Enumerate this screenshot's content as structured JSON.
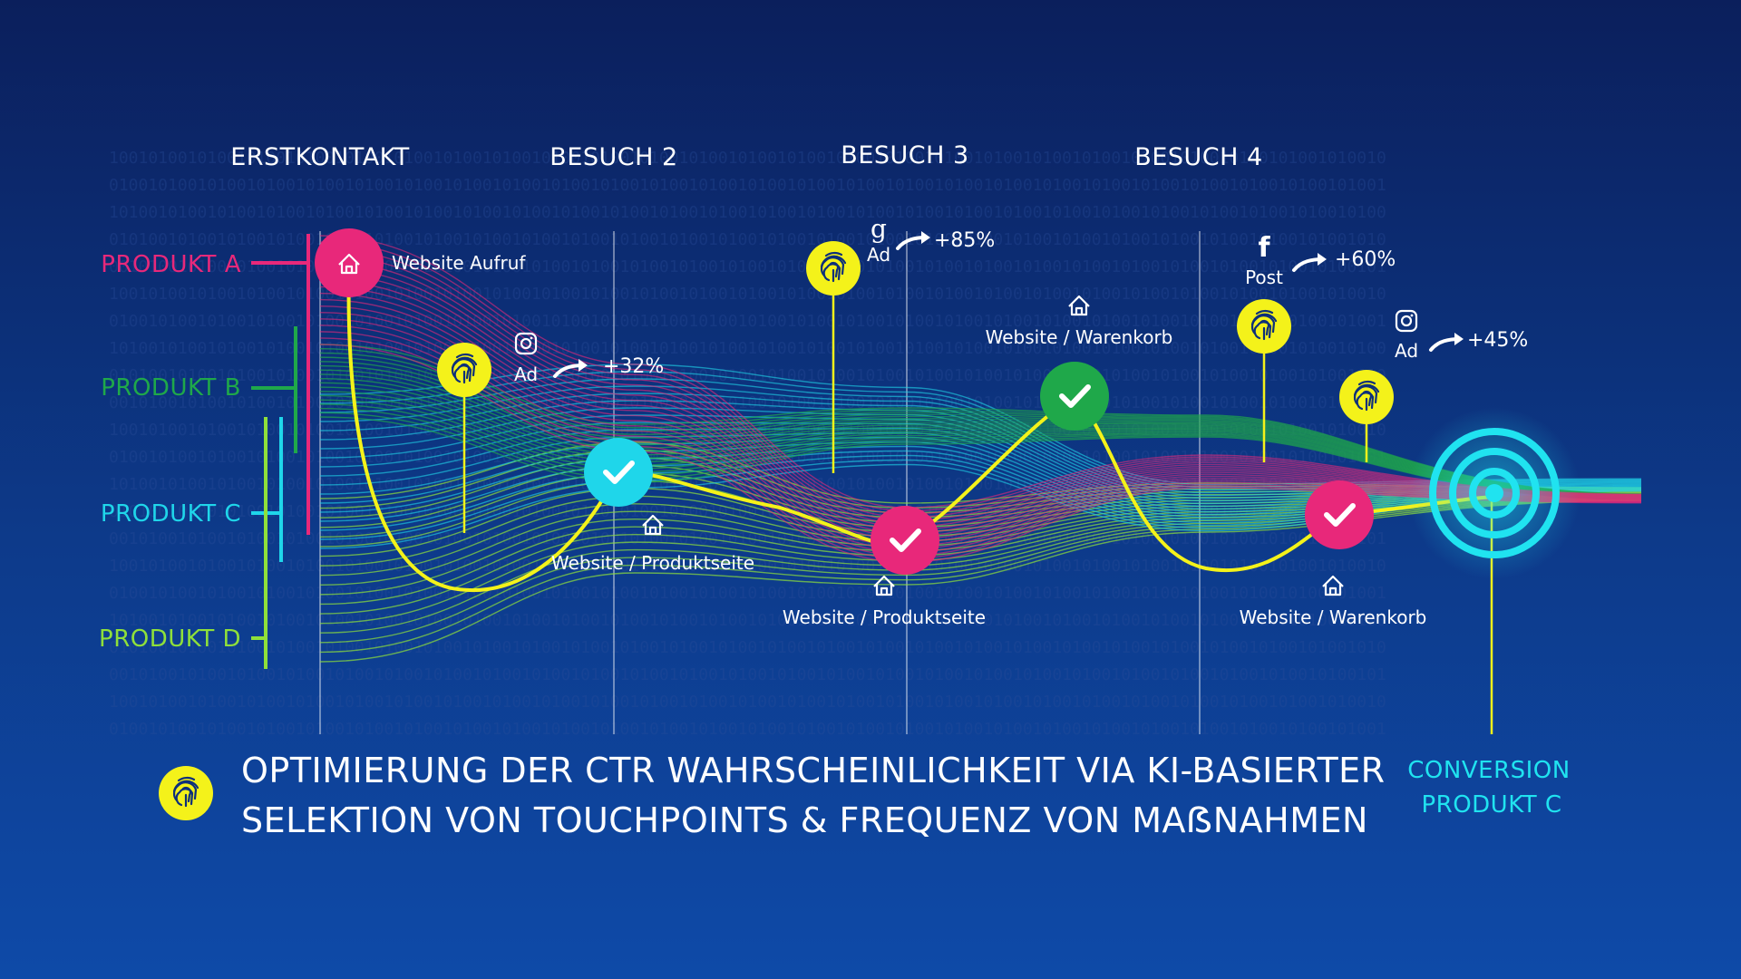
{
  "stages": [
    "ERSTKONTAKT",
    "BESUCH 2",
    "BESUCH 3",
    "BESUCH 4"
  ],
  "products": [
    {
      "label": "PRODUKT A",
      "color": "#e8287a"
    },
    {
      "label": "PRODUKT B",
      "color": "#1fa84a"
    },
    {
      "label": "PRODUKT C",
      "color": "#1fd6ea"
    },
    {
      "label": "PRODUKT D",
      "color": "#8fe03a"
    }
  ],
  "touchpoints": {
    "website_aufruf": "Website Aufruf",
    "produktseite_1": "Website / Produktseite",
    "produktseite_2": "Website / Produktseite",
    "warenkorb_1": "Website / Warenkorb",
    "warenkorb_2": "Website / Warenkorb"
  },
  "ads": [
    {
      "source": "instagram-icon",
      "label": "Ad",
      "uplift": "+32%"
    },
    {
      "source": "google-icon",
      "label": "Ad",
      "uplift": "+85%"
    },
    {
      "source": "facebook-icon",
      "label": "Post",
      "uplift": "+60%"
    },
    {
      "source": "instagram-icon",
      "label": "Ad",
      "uplift": "+45%"
    }
  ],
  "footer": {
    "line1": "OPTIMIERUNG DER CTR WAHRSCHEINLICHKEIT VIA KI-BASIERTER",
    "line2": "SELEKTION VON TOUCHPOINTS & FREQUENZ VON MAẞNAHMEN"
  },
  "conversion": {
    "line1": "CONVERSION",
    "line2": "PRODUKT C"
  },
  "colors": {
    "yellow": "#f4f21a",
    "magenta": "#e8287a",
    "cyan": "#1fd6ea",
    "green": "#1fa84a",
    "lime": "#8fe03a"
  }
}
